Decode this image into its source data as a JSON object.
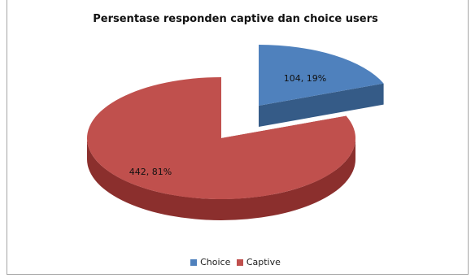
{
  "chart_data": {
    "type": "pie",
    "title": "Persentase responden captive dan choice users",
    "categories": [
      "Choice",
      "Captive"
    ],
    "values": [
      104,
      442
    ],
    "data_labels": [
      "104, 19%",
      "442, 81%"
    ],
    "colors": [
      "#4f81bd",
      "#c0504d"
    ],
    "legend_position": "bottom",
    "three_d": true,
    "exploded": "Choice"
  }
}
